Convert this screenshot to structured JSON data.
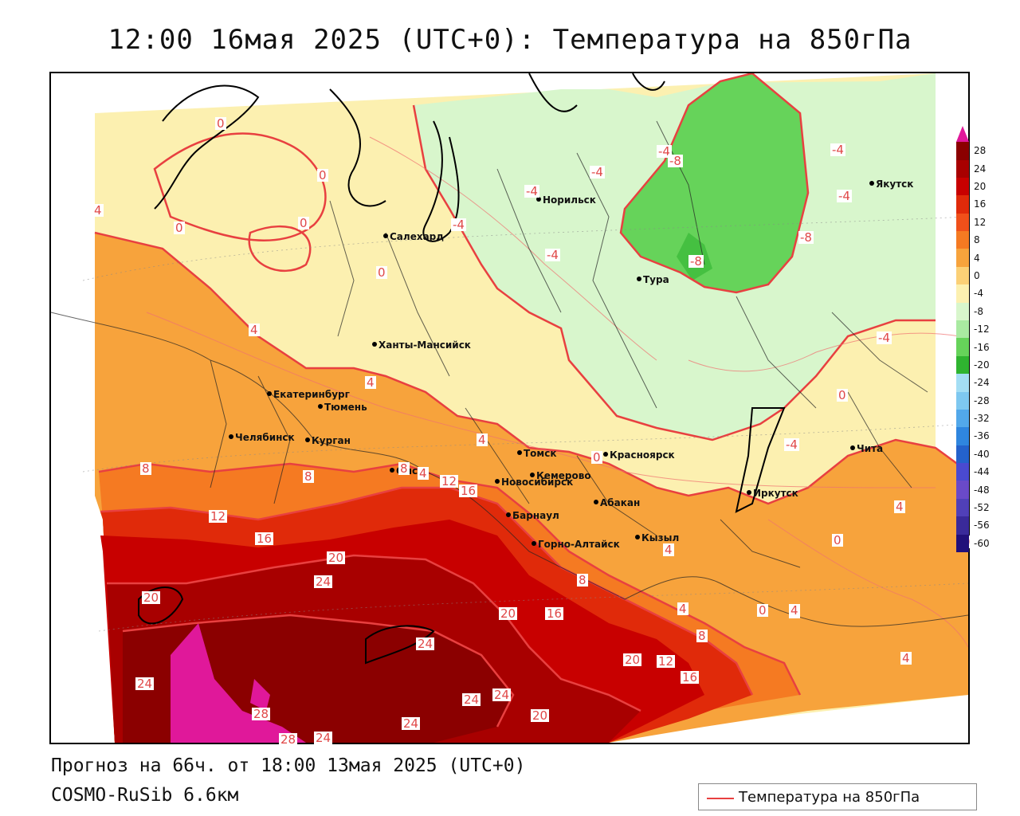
{
  "title": "12:00 16мая 2025 (UTC+0): Температура на 850гПа",
  "forecast_info": "Прогноз на 66ч. от 18:00 13мая 2025 (UTC+0)",
  "model_info": "COSMO-RuSib 6.6км",
  "legend": {
    "label": "Температура на 850гПа",
    "line_color": "#e84040"
  },
  "colorbar": {
    "ticks": [
      "28",
      "24",
      "20",
      "16",
      "12",
      "8",
      "4",
      "0",
      "-4",
      "-8",
      "-12",
      "-16",
      "-20",
      "-24",
      "-28",
      "-32",
      "-36",
      "-40",
      "-44",
      "-48",
      "-52",
      "-56",
      "-60"
    ],
    "colors": [
      "#8b0000",
      "#a80000",
      "#c80000",
      "#e02a0a",
      "#f0501a",
      "#f57a22",
      "#f7a33c",
      "#fbd076",
      "#fcf0b0",
      "#d8f6cc",
      "#a9eaa1",
      "#66d35a",
      "#2fb430",
      "#a4def4",
      "#7ec8f0",
      "#52a8ea",
      "#2f86df",
      "#2462cc",
      "#4a4ad0",
      "#6a4ac8",
      "#5040b8",
      "#3a2a9a",
      "#22107a"
    ],
    "top_color": "#e0189a"
  },
  "cities": [
    {
      "name": "Норильск"
    },
    {
      "name": "Якутск"
    },
    {
      "name": "Салехард"
    },
    {
      "name": "Тура"
    },
    {
      "name": "Ханты-Мансийск"
    },
    {
      "name": "Екатеринбург"
    },
    {
      "name": "Тюмень"
    },
    {
      "name": "Челябинск"
    },
    {
      "name": "Курган"
    },
    {
      "name": "Омск"
    },
    {
      "name": "Новосибирск"
    },
    {
      "name": "Томск"
    },
    {
      "name": "Красноярск"
    },
    {
      "name": "Кемерово"
    },
    {
      "name": "Абакан"
    },
    {
      "name": "Барнаул"
    },
    {
      "name": "Горно-Алтайск"
    },
    {
      "name": "Кызыл"
    },
    {
      "name": "Иркутск"
    },
    {
      "name": "Чита"
    }
  ],
  "isotherm_labels": [
    "0",
    "0",
    "0",
    "0",
    "-4",
    "-4",
    "-4",
    "-4",
    "-4",
    "-4",
    "-4",
    "-4",
    "-8",
    "-8",
    "-8",
    "-4",
    "4",
    "4",
    "4",
    "4",
    "4",
    "4",
    "4",
    "0",
    "0",
    "0",
    "0",
    "8",
    "8",
    "8",
    "12",
    "12",
    "16",
    "16",
    "20",
    "20",
    "24",
    "24",
    "20",
    "16",
    "20",
    "12",
    "16",
    "24",
    "24",
    "24",
    "20",
    "24",
    "28",
    "28",
    "24",
    "8",
    "4",
    "4",
    "8",
    "0",
    "4",
    "4",
    "0"
  ]
}
